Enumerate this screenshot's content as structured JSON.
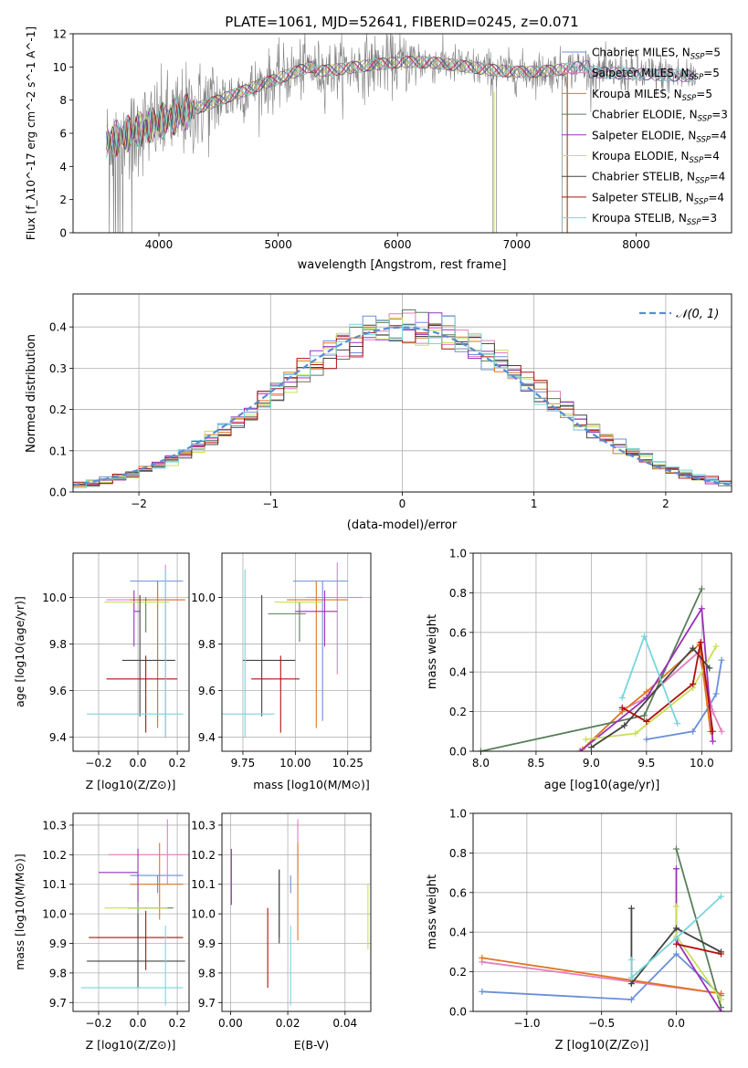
{
  "figure": {
    "title": "PLATE=1061, MJD=52641, FIBERID=0245, z=0.071"
  },
  "colors": {
    "chabrier_miles": "#6b8fd8",
    "salpeter_miles": "#e27fbf",
    "kroupa_miles": "#e0761f",
    "chabrier_elodie": "#5a7e5a",
    "salpeter_elodie": "#9a32b8",
    "kroupa_elodie": "#c8e05a",
    "chabrier_stelib": "#444444",
    "salpeter_stelib": "#b01010",
    "kroupa_stelib": "#76d6da",
    "data": "#808080",
    "normal": "#5b8bd4",
    "grid": "#b0b0b0"
  },
  "chart_data": [
    {
      "id": "spectrum",
      "type": "line",
      "xlabel": "wavelength [Angstrom, rest frame]",
      "ylabel": "Flux [f_λ10^-17 erg cm^-2 s^-1 A^-1]",
      "xlim": [
        3280,
        8800
      ],
      "ylim": [
        0,
        12
      ],
      "xticks": [
        4000,
        5000,
        6000,
        7000,
        8000
      ],
      "yticks": [
        0,
        2,
        4,
        6,
        8,
        10,
        12
      ],
      "grid": false,
      "legend_placement": "right",
      "legend": [
        "Chabrier MILES, N_SSP=5",
        "Salpeter MILES, N_SSP=5",
        "Kroupa MILES, N_SSP=5",
        "Chabrier ELODIE, N_SSP=3",
        "Salpeter ELODIE, N_SSP=4",
        "Kroupa ELODIE, N_SSP=4",
        "Chabrier STELIB, N_SSP=4",
        "Salpeter STELIB, N_SSP=4",
        "Kroupa STELIB, N_SSP=3"
      ]
    },
    {
      "id": "residuals",
      "type": "line",
      "xlabel": "(data-model)/error",
      "ylabel": "Normed distribution",
      "xlim": [
        -2.5,
        2.5
      ],
      "ylim": [
        0,
        0.48
      ],
      "xticks": [
        -2,
        -1,
        0,
        1,
        2
      ],
      "yticks": [
        0.0,
        0.1,
        0.2,
        0.3,
        0.4
      ],
      "grid": true,
      "legend": [
        "𝒩(0, 1)"
      ],
      "legend_placement": "top-right"
    },
    {
      "id": "age_vs_Z",
      "type": "scatter",
      "xlabel": "Z [log10(Z/Z⊙)]",
      "ylabel": "age [log10(age/yr)]",
      "xlim": [
        -0.33,
        0.26
      ],
      "ylim": [
        9.34,
        10.19
      ],
      "xticks": [
        -0.2,
        0.0,
        0.2
      ],
      "yticks": [
        9.4,
        9.6,
        9.8,
        10.0
      ],
      "points": [
        {
          "x": 0.1,
          "y": 10.07,
          "xerr": [
            0.14,
            0.13
          ],
          "yerr": [
            0.6,
            0.0
          ]
        },
        {
          "x": 0.14,
          "y": 9.99,
          "xerr": [
            0.3,
            0.1
          ],
          "yerr": [
            0.59,
            0.15
          ]
        },
        {
          "x": 0.1,
          "y": 9.99,
          "xerr": [
            0.14,
            0.14
          ],
          "yerr": [
            0.55,
            0.08
          ]
        },
        {
          "x": 0.04,
          "y": 9.97,
          "xerr": [
            0.0,
            0.0
          ],
          "yerr": [
            0.12,
            0.03
          ]
        },
        {
          "x": -0.02,
          "y": 9.94,
          "xerr": [
            0.0,
            0.03
          ],
          "yerr": [
            0.15,
            0.09
          ]
        },
        {
          "x": 0.03,
          "y": 9.98,
          "xerr": [
            0.2,
            0.13
          ],
          "yerr": [
            0.0,
            0.0
          ]
        },
        {
          "x": 0.01,
          "y": 9.73,
          "xerr": [
            0.09,
            0.18
          ],
          "yerr": [
            0.24,
            0.28
          ]
        },
        {
          "x": 0.04,
          "y": 9.65,
          "xerr": [
            0.2,
            0.16
          ],
          "yerr": [
            0.23,
            0.1
          ]
        },
        {
          "x": 0.14,
          "y": 9.5,
          "xerr": [
            0.4,
            0.09
          ],
          "yerr": [
            0.1,
            0.62
          ]
        }
      ]
    },
    {
      "id": "age_vs_mass",
      "type": "scatter",
      "xlabel": "mass [log10(M/M⊙)]",
      "ylabel": "",
      "xlim": [
        9.65,
        10.36
      ],
      "ylim": [
        9.34,
        10.19
      ],
      "xticks": [
        9.75,
        10.0,
        10.25
      ],
      "yticks": [
        9.4,
        9.6,
        9.8,
        10.0
      ],
      "points": [
        {
          "x": 10.13,
          "y": 10.07,
          "xerr": [
            0.14,
            0.12
          ],
          "yerr": [
            0.6,
            0.0
          ]
        },
        {
          "x": 10.2,
          "y": 10.0,
          "xerr": [
            0.15,
            0.12
          ],
          "yerr": [
            0.33,
            0.15
          ]
        },
        {
          "x": 10.1,
          "y": 9.99,
          "xerr": [
            0.14,
            0.15
          ],
          "yerr": [
            0.55,
            0.08
          ]
        },
        {
          "x": 10.02,
          "y": 9.93,
          "xerr": [
            0.15,
            0.03
          ],
          "yerr": [
            0.12,
            0.05
          ]
        },
        {
          "x": 10.14,
          "y": 9.94,
          "xerr": [
            0.14,
            0.06
          ],
          "yerr": [
            0.15,
            0.09
          ]
        },
        {
          "x": 10.03,
          "y": 9.98,
          "xerr": [
            0.13,
            0.1
          ],
          "yerr": [
            0.0,
            0.0
          ]
        },
        {
          "x": 9.84,
          "y": 9.73,
          "xerr": [
            0.09,
            0.16
          ],
          "yerr": [
            0.24,
            0.28
          ]
        },
        {
          "x": 9.93,
          "y": 9.65,
          "xerr": [
            0.14,
            0.09
          ],
          "yerr": [
            0.23,
            0.1
          ]
        },
        {
          "x": 9.76,
          "y": 9.5,
          "xerr": [
            0.12,
            0.14
          ],
          "yerr": [
            0.1,
            0.62
          ]
        }
      ]
    },
    {
      "id": "weight_vs_age",
      "type": "line",
      "xlabel": "age [log10(age/yr)]",
      "ylabel": "mass weight",
      "xlim": [
        7.93,
        10.27
      ],
      "ylim": [
        0.0,
        1.0
      ],
      "xticks": [
        8.0,
        8.5,
        9.0,
        9.5,
        10.0
      ],
      "yticks": [
        0.0,
        0.2,
        0.4,
        0.6,
        0.8,
        1.0
      ],
      "grid": true,
      "series": [
        {
          "points": [
            [
              9.5,
              0.06
            ],
            [
              9.92,
              0.1
            ],
            [
              10.07,
              0.23
            ],
            [
              10.13,
              0.29
            ],
            [
              10.18,
              0.46
            ]
          ]
        },
        {
          "points": [
            [
              9.28,
              0.21
            ],
            [
              9.5,
              0.27
            ],
            [
              9.97,
              0.5
            ],
            [
              10.1,
              0.2
            ],
            [
              10.18,
              0.1
            ]
          ]
        },
        {
          "points": [
            [
              8.92,
              0.01
            ],
            [
              9.28,
              0.2
            ],
            [
              9.5,
              0.3
            ],
            [
              9.98,
              0.54
            ],
            [
              10.08,
              0.1
            ]
          ]
        },
        {
          "points": [
            [
              8.0,
              0.0
            ],
            [
              9.48,
              0.18
            ],
            [
              10.0,
              0.82
            ]
          ]
        },
        {
          "points": [
            [
              8.9,
              0.0
            ],
            [
              9.5,
              0.27
            ],
            [
              10.0,
              0.72
            ],
            [
              10.1,
              0.05
            ]
          ]
        },
        {
          "points": [
            [
              8.95,
              0.06
            ],
            [
              9.4,
              0.09
            ],
            [
              9.92,
              0.32
            ],
            [
              10.13,
              0.53
            ]
          ]
        },
        {
          "points": [
            [
              9.0,
              0.02
            ],
            [
              9.3,
              0.13
            ],
            [
              9.92,
              0.52
            ],
            [
              10.07,
              0.42
            ]
          ]
        },
        {
          "points": [
            [
              9.28,
              0.22
            ],
            [
              9.5,
              0.15
            ],
            [
              9.92,
              0.34
            ],
            [
              9.99,
              0.55
            ],
            [
              10.1,
              0.1
            ]
          ]
        },
        {
          "points": [
            [
              9.28,
              0.27
            ],
            [
              9.48,
              0.58
            ],
            [
              9.78,
              0.14
            ]
          ]
        }
      ]
    },
    {
      "id": "mass_vs_Z",
      "type": "scatter",
      "xlabel": "Z [log10(Z/Z⊙)]",
      "ylabel": "mass [log10(M/M⊙)]",
      "xlim": [
        -0.33,
        0.26
      ],
      "ylim": [
        9.67,
        10.34
      ],
      "xticks": [
        -0.2,
        0.0,
        0.2
      ],
      "yticks": [
        9.7,
        9.8,
        9.9,
        10.0,
        10.1,
        10.2,
        10.3
      ],
      "points": [
        {
          "x": 0.1,
          "y": 10.13,
          "xerr": [
            0.14,
            0.13
          ],
          "yerr": [
            0.06,
            0.0
          ]
        },
        {
          "x": 0.15,
          "y": 10.2,
          "xerr": [
            0.3,
            0.11
          ],
          "yerr": [
            0.1,
            0.12
          ]
        },
        {
          "x": 0.11,
          "y": 10.1,
          "xerr": [
            0.15,
            0.12
          ],
          "yerr": [
            0.12,
            0.14
          ]
        },
        {
          "x": 0.0,
          "y": 10.02,
          "xerr": [
            0.05,
            0.18
          ],
          "yerr": [
            0.1,
            0.06
          ]
        },
        {
          "x": 0.0,
          "y": 10.14,
          "xerr": [
            0.2,
            0.0
          ],
          "yerr": [
            0.1,
            0.08
          ]
        },
        {
          "x": 0.03,
          "y": 10.02,
          "xerr": [
            0.2,
            0.12
          ],
          "yerr": [
            0.0,
            0.0
          ]
        },
        {
          "x": 0.0,
          "y": 9.84,
          "xerr": [
            0.26,
            0.24
          ],
          "yerr": [
            0.09,
            0.16
          ]
        },
        {
          "x": 0.04,
          "y": 9.92,
          "xerr": [
            0.29,
            0.19
          ],
          "yerr": [
            0.11,
            0.09
          ]
        },
        {
          "x": 0.14,
          "y": 9.75,
          "xerr": [
            0.43,
            0.09
          ],
          "yerr": [
            0.06,
            0.21
          ]
        }
      ]
    },
    {
      "id": "mass_vs_ebv",
      "type": "scatter",
      "xlabel": "E(B-V)",
      "ylabel": "",
      "xlim": [
        -0.003,
        0.049
      ],
      "ylim": [
        9.67,
        10.34
      ],
      "xticks": [
        0.0,
        0.02,
        0.04
      ],
      "yticks": [
        9.7,
        9.8,
        9.9,
        10.0,
        10.1,
        10.2,
        10.3
      ],
      "points": [
        {
          "x": 0.021,
          "y": 10.13,
          "xerr": [
            0,
            0
          ],
          "yerr": [
            0.06,
            0.0
          ]
        },
        {
          "x": 0.0235,
          "y": 10.22,
          "xerr": [
            0,
            0
          ],
          "yerr": [
            0.1,
            0.1
          ]
        },
        {
          "x": 0.0235,
          "y": 10.1,
          "xerr": [
            0,
            0
          ],
          "yerr": [
            0.19,
            0.14
          ]
        },
        {
          "x": 0.017,
          "y": 10.02,
          "xerr": [
            0,
            0
          ],
          "yerr": [
            0.1,
            0.13
          ]
        },
        {
          "x": 0.0003,
          "y": 10.12,
          "xerr": [
            0,
            0
          ],
          "yerr": [
            0.09,
            0.1
          ]
        },
        {
          "x": 0.048,
          "y": 10.0,
          "xerr": [
            0,
            0
          ],
          "yerr": [
            0.12,
            0.1
          ]
        },
        {
          "x": 0.017,
          "y": 9.95,
          "xerr": [
            0,
            0
          ],
          "yerr": [
            0.05,
            0.2
          ]
        },
        {
          "x": 0.013,
          "y": 9.9,
          "xerr": [
            0,
            0
          ],
          "yerr": [
            0.15,
            0.12
          ]
        },
        {
          "x": 0.021,
          "y": 9.75,
          "xerr": [
            0,
            0
          ],
          "yerr": [
            0.06,
            0.21
          ]
        }
      ]
    },
    {
      "id": "weight_vs_Z",
      "type": "line",
      "xlabel": "Z [log10(Z/Z⊙)]",
      "ylabel": "mass weight",
      "xlim": [
        -1.36,
        0.37
      ],
      "ylim": [
        0.0,
        1.0
      ],
      "xticks": [
        -1.0,
        -0.5,
        0.0
      ],
      "yticks": [
        0.0,
        0.2,
        0.4,
        0.6,
        0.8,
        1.0
      ],
      "grid": true,
      "series": [
        {
          "points": [
            [
              -1.3,
              0.1
            ],
            [
              -0.3,
              0.06
            ],
            [
              0.0,
              0.29
            ],
            [
              0.3,
              0.08
            ]
          ]
        },
        {
          "points": [
            [
              -1.3,
              0.25
            ],
            [
              0.3,
              0.09
            ]
          ]
        },
        {
          "points": [
            [
              -1.3,
              0.27
            ],
            [
              0.3,
              0.09
            ]
          ]
        },
        {
          "points": [
            [
              0.0,
              0.82
            ],
            [
              0.3,
              0.02
            ]
          ]
        },
        {
          "points": [
            [
              0.0,
              0.72
            ],
            [
              0.0,
              0.36
            ],
            [
              0.3,
              0.0
            ]
          ]
        },
        {
          "points": [
            [
              0.0,
              0.53
            ],
            [
              0.0,
              0.38
            ],
            [
              0.3,
              0.06
            ]
          ]
        },
        {
          "points": [
            [
              -0.3,
              0.52
            ],
            [
              -0.3,
              0.14
            ],
            [
              0.0,
              0.42
            ],
            [
              0.3,
              0.3
            ]
          ]
        },
        {
          "points": [
            [
              0.0,
              0.34
            ],
            [
              0.3,
              0.29
            ]
          ]
        },
        {
          "points": [
            [
              -0.3,
              0.26
            ],
            [
              -0.3,
              0.17
            ],
            [
              0.0,
              0.37
            ],
            [
              0.3,
              0.58
            ]
          ]
        }
      ]
    }
  ]
}
